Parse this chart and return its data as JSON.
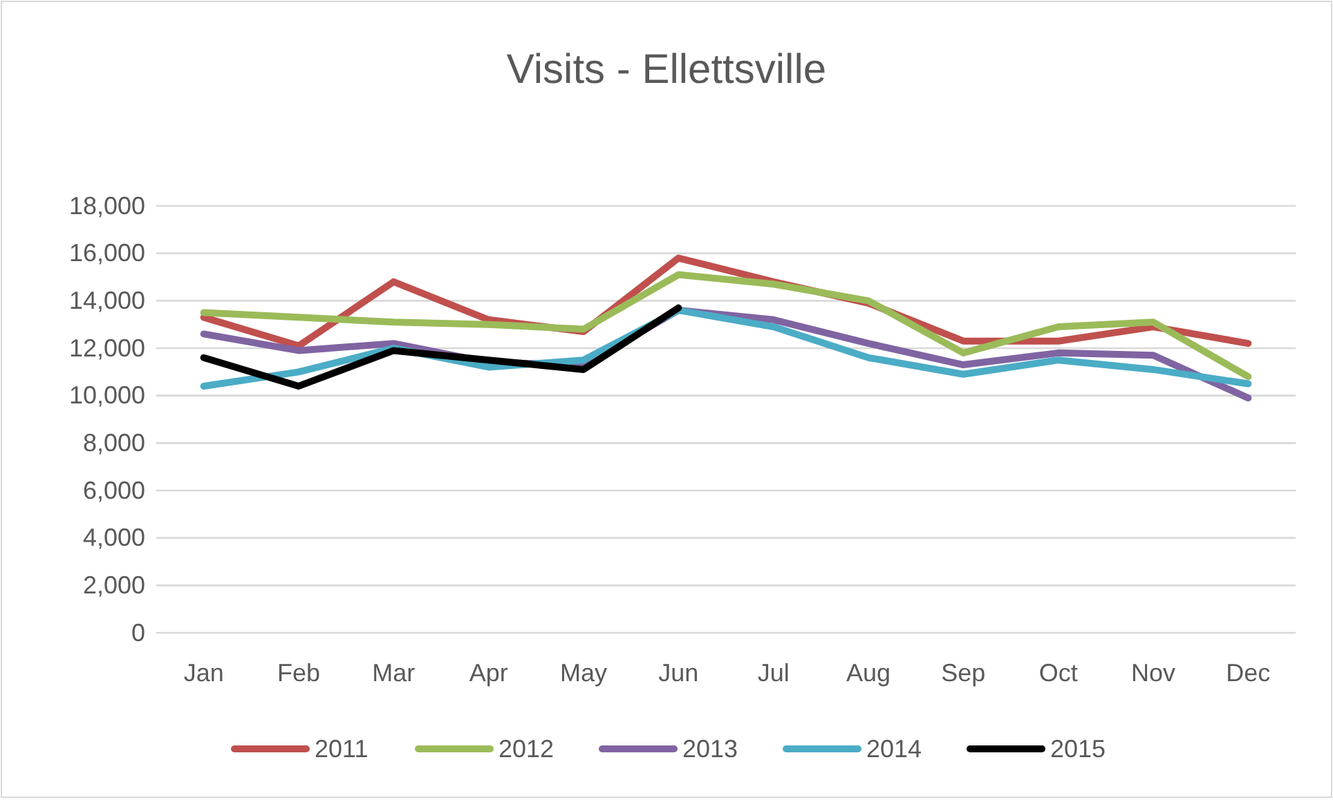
{
  "chart_data": {
    "type": "line",
    "title": "Visits - Ellettsville",
    "categories": [
      "Jan",
      "Feb",
      "Mar",
      "Apr",
      "May",
      "Jun",
      "Jul",
      "Aug",
      "Sep",
      "Oct",
      "Nov",
      "Dec"
    ],
    "series": [
      {
        "name": "2011",
        "color": "#c0504d",
        "values": [
          13300,
          12100,
          14800,
          13200,
          12700,
          15800,
          14800,
          13900,
          12300,
          12300,
          12900,
          12200
        ]
      },
      {
        "name": "2012",
        "color": "#9bbb59",
        "values": [
          13500,
          13300,
          13100,
          13000,
          12800,
          15100,
          14700,
          14000,
          11800,
          12900,
          13100,
          10800
        ]
      },
      {
        "name": "2013",
        "color": "#8064a2",
        "values": [
          12600,
          11900,
          12200,
          11400,
          11300,
          13600,
          13200,
          12200,
          11300,
          11800,
          11700,
          9900
        ]
      },
      {
        "name": "2014",
        "color": "#4bacc6",
        "values": [
          10400,
          11000,
          12000,
          11200,
          11500,
          13600,
          12900,
          11600,
          10900,
          11500,
          11100,
          10500
        ]
      },
      {
        "name": "2015",
        "color": "#000000",
        "values": [
          11600,
          10400,
          11900,
          11500,
          11100,
          13700,
          null,
          null,
          null,
          null,
          null,
          null
        ]
      }
    ],
    "ylim": [
      0,
      18000
    ],
    "yticks": [
      {
        "value": 0,
        "label": "0"
      },
      {
        "value": 2000,
        "label": "2,000"
      },
      {
        "value": 4000,
        "label": "4,000"
      },
      {
        "value": 6000,
        "label": "6,000"
      },
      {
        "value": 8000,
        "label": "8,000"
      },
      {
        "value": 10000,
        "label": "10,000"
      },
      {
        "value": 12000,
        "label": "12,000"
      },
      {
        "value": 14000,
        "label": "14,000"
      },
      {
        "value": 16000,
        "label": "16,000"
      },
      {
        "value": 18000,
        "label": "18,000"
      }
    ],
    "grid": "y",
    "legend": "bottom",
    "line_style": "solid",
    "marker": "none"
  }
}
